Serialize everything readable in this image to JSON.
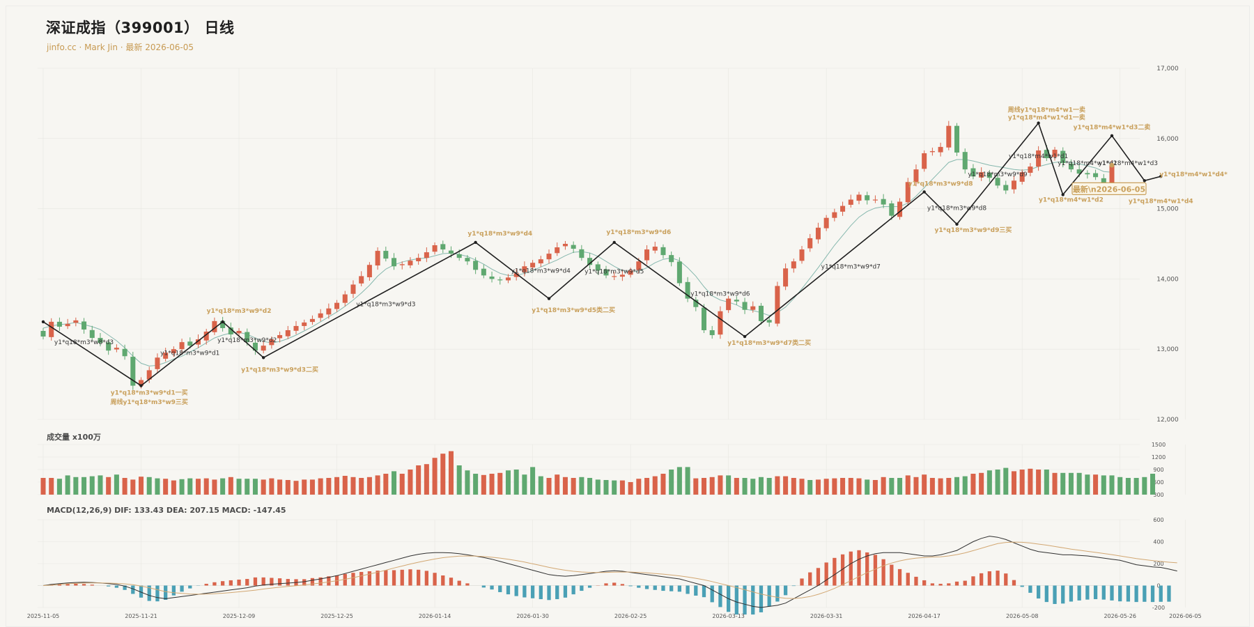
{
  "title": "深证成指（399001） 日线",
  "subtitle": "jinfo.cc · Mark Jin · 最新 2026-06-05",
  "volume_label": "成交量 x100万",
  "macd_label": "MACD(12,26,9) DIF: 133.43 DEA: 207.15 MACD: -147.45",
  "colors": {
    "up": "#d9634a",
    "down": "#5fa870",
    "ma": "#86b8ae",
    "stroke": "#1f1f1f",
    "annot": "#c9a05c",
    "dif": "#2f2f2f",
    "dea": "#d2a772",
    "macd_neg": "#4aa0b5",
    "grid": "#e7e7e2"
  },
  "chart_data": [
    {
      "type": "candlestick",
      "name": "price",
      "ylim": [
        12000,
        17000
      ],
      "y_ticks": [
        "17,000",
        "16,000",
        "15,000",
        "14,000",
        "13,000",
        "12,000"
      ],
      "closes": [
        13180,
        13390,
        13320,
        13360,
        13410,
        13280,
        13160,
        13090,
        12980,
        13020,
        12900,
        12480,
        12560,
        12700,
        12880,
        12950,
        13000,
        13100,
        13050,
        13140,
        13250,
        13400,
        13300,
        13210,
        13260,
        13100,
        12980,
        13050,
        13140,
        13200,
        13270,
        13330,
        13380,
        13430,
        13510,
        13580,
        13660,
        13780,
        13920,
        14040,
        14200,
        14400,
        14290,
        14180,
        14210,
        14260,
        14300,
        14380,
        14480,
        14420,
        14360,
        14300,
        14250,
        14130,
        14050,
        14000,
        13980,
        14020,
        14080,
        14180,
        14230,
        14280,
        14360,
        14450,
        14500,
        14430,
        14300,
        14200,
        14120,
        14050,
        14040,
        14060,
        14120,
        14250,
        14420,
        14460,
        14340,
        14240,
        13940,
        13720,
        13600,
        13270,
        13200,
        13540,
        13720,
        13680,
        13560,
        13610,
        13400,
        13380,
        13900,
        14150,
        14250,
        14420,
        14580,
        14730,
        14870,
        14950,
        15040,
        15130,
        15200,
        15120,
        15130,
        15060,
        14900,
        15100,
        15380,
        15560,
        15790,
        15820,
        15880,
        16180,
        15800,
        15560,
        15460,
        15520,
        15440,
        15330,
        15260,
        15400,
        15520,
        15600,
        15830,
        15720,
        15840,
        15650,
        15560,
        15500,
        15490,
        15450,
        15300,
        15620
      ],
      "ma": [
        13300,
        13330,
        13350,
        13360,
        13380,
        13350,
        13320,
        13280,
        13200,
        13120,
        13020,
        12900,
        12800,
        12760,
        12770,
        12810,
        12860,
        12900,
        12960,
        13020,
        13090,
        13160,
        13200,
        13230,
        13240,
        13210,
        13160,
        13110,
        13090,
        13110,
        13150,
        13200,
        13260,
        13320,
        13390,
        13460,
        13530,
        13610,
        13700,
        13800,
        13910,
        14040,
        14140,
        14200,
        14240,
        14270,
        14290,
        14300,
        14330,
        14360,
        14370,
        14350,
        14320,
        14270,
        14210,
        14140,
        14080,
        14050,
        14050,
        14080,
        14120,
        14170,
        14220,
        14270,
        14330,
        14380,
        14390,
        14370,
        14320,
        14250,
        14180,
        14120,
        14100,
        14110,
        14160,
        14230,
        14280,
        14300,
        14260,
        14160,
        14040,
        13890,
        13760,
        13700,
        13670,
        13630,
        13570,
        13550,
        13520,
        13480,
        13520,
        13600,
        13720,
        13860,
        14010,
        14160,
        14320,
        14480,
        14620,
        14760,
        14880,
        14960,
        15010,
        15030,
        15030,
        15030,
        15080,
        15180,
        15300,
        15420,
        15540,
        15660,
        15700,
        15700,
        15680,
        15650,
        15620,
        15600,
        15580,
        15560,
        15550,
        15560,
        15600,
        15630,
        15660,
        15670,
        15660,
        15640,
        15610,
        15580,
        15530,
        15520
      ],
      "annotations": [
        {
          "text": "y1*q18*m3*w8*d3",
          "x": 5,
          "y": 13070,
          "color": "dark"
        },
        {
          "text": "y1*q18*m3*w9*d1一买",
          "x": 13,
          "y": 12350,
          "color": "gold"
        },
        {
          "text": "周线y1*q18*m3*w9三买",
          "x": 13,
          "y": 12220,
          "color": "gold"
        },
        {
          "text": "y1*q18*m3*w9*d1",
          "x": 18,
          "y": 12920,
          "color": "dark"
        },
        {
          "text": "y1*q18*m3*w9*d2",
          "x": 24,
          "y": 13520,
          "color": "gold"
        },
        {
          "text": "y1*q18*m3*w9*d2",
          "x": 25,
          "y": 13100,
          "color": "dark"
        },
        {
          "text": "y1*q18*m3*w9*d3二买",
          "x": 29,
          "y": 12680,
          "color": "gold"
        },
        {
          "text": "y1*q18*m3*w9*d3",
          "x": 42,
          "y": 13610,
          "color": "dark"
        },
        {
          "text": "y1*q18*m3*w9*d4",
          "x": 56,
          "y": 14620,
          "color": "gold"
        },
        {
          "text": "y1*q18*m3*w9*d4",
          "x": 61,
          "y": 14090,
          "color": "dark"
        },
        {
          "text": "y1*q18*m3*w9*d5类二买",
          "x": 65,
          "y": 13530,
          "color": "gold"
        },
        {
          "text": "y1*q18*m3*w9*d5",
          "x": 70,
          "y": 14080,
          "color": "dark"
        },
        {
          "text": "y1*q18*m3*w9*d6",
          "x": 73,
          "y": 14640,
          "color": "gold"
        },
        {
          "text": "y1*q18*m3*w9*d6",
          "x": 83,
          "y": 13760,
          "color": "dark"
        },
        {
          "text": "y1*q18*m3*w9*d7类二买",
          "x": 89,
          "y": 13060,
          "color": "gold"
        },
        {
          "text": "y1*q18*m3*w9*d7",
          "x": 99,
          "y": 14150,
          "color": "dark"
        },
        {
          "text": "y1*q18*m3*w9*d8",
          "x": 110,
          "y": 15330,
          "color": "gold"
        },
        {
          "text": "y1*q18*m3*w9*d8",
          "x": 112,
          "y": 14980,
          "color": "dark"
        },
        {
          "text": "y1*q18*m3*w9*d9三买",
          "x": 114,
          "y": 14670,
          "color": "gold"
        },
        {
          "text": "y1*q18*m3*w9*d9",
          "x": 117,
          "y": 15460,
          "color": "dark"
        },
        {
          "text": "y1*q18*m4*w1*d1",
          "x": 122,
          "y": 15720,
          "color": "dark"
        },
        {
          "text": "周线y1*q18*m4*w1一卖",
          "x": 123,
          "y": 16380,
          "color": "gold"
        },
        {
          "text": "y1*q18*m4*w1*d1一卖",
          "x": 123,
          "y": 16270,
          "color": "gold"
        },
        {
          "text": "y1*q18*m4*w1*d2",
          "x": 126,
          "y": 15100,
          "color": "gold"
        },
        {
          "text": "y1*q18*m4*w1*d2",
          "x": 128,
          "y": 15620,
          "color": "dark"
        },
        {
          "text": "y1*q18*m4*w1*d3二卖",
          "x": 131,
          "y": 16130,
          "color": "gold"
        },
        {
          "text": "y1*q18*m4*w1*d3",
          "x": 133,
          "y": 15620,
          "color": "dark"
        },
        {
          "text": "y1*q18*m4*w1*d4",
          "x": 137,
          "y": 15080,
          "color": "gold"
        },
        {
          "text": "y1*q18*m4*w1*d4*",
          "x": 141,
          "y": 15460,
          "color": "gold"
        }
      ],
      "latest_label": "最新\\n2026-06-05",
      "zigzag": [
        [
          0,
          13390
        ],
        [
          12,
          12480
        ],
        [
          22,
          13390
        ],
        [
          27,
          12880
        ],
        [
          53,
          14520
        ],
        [
          62,
          13720
        ],
        [
          70,
          14520
        ],
        [
          86,
          13180
        ],
        [
          108,
          15240
        ],
        [
          112,
          14780
        ],
        [
          122,
          16220
        ],
        [
          125,
          15200
        ],
        [
          131,
          16040
        ],
        [
          135,
          15400
        ],
        [
          137,
          15460
        ]
      ]
    },
    {
      "type": "bar",
      "name": "volume",
      "ylim": [
        300,
        1500
      ],
      "y_ticks": [
        "1500",
        "1200",
        "900",
        "600",
        "300"
      ],
      "values": [
        700,
        700,
        680,
        760,
        720,
        720,
        740,
        760,
        720,
        780,
        700,
        660,
        730,
        720,
        690,
        680,
        640,
        670,
        690,
        680,
        690,
        660,
        690,
        720,
        680,
        680,
        680,
        660,
        690,
        660,
        650,
        630,
        660,
        660,
        690,
        700,
        720,
        750,
        720,
        700,
        720,
        760,
        800,
        860,
        800,
        900,
        1000,
        1030,
        1180,
        1280,
        1340,
        1000,
        880,
        800,
        770,
        800,
        820,
        880,
        900,
        780,
        960,
        740,
        700,
        780,
        720,
        700,
        720,
        700,
        660,
        650,
        640,
        640,
        600,
        680,
        700,
        740,
        800,
        900,
        960,
        960,
        690,
        700,
        720,
        760,
        760,
        700,
        700,
        680,
        720,
        700,
        740,
        740,
        700,
        680,
        650,
        660,
        680,
        690,
        700,
        700,
        690,
        660,
        650,
        720,
        700,
        700,
        760,
        720,
        780,
        700,
        690,
        700,
        720,
        740,
        800,
        820,
        880,
        900,
        940,
        860,
        900,
        920,
        900,
        900,
        820,
        820,
        820,
        820,
        780,
        780,
        760,
        760,
        720,
        700,
        700,
        720,
        800
      ],
      "up": [
        1,
        1,
        0,
        0,
        0,
        0,
        0,
        0,
        1,
        0,
        1,
        1,
        1,
        0,
        0,
        1,
        1,
        0,
        0,
        1,
        1,
        1,
        0,
        1,
        0,
        0,
        0,
        1,
        1,
        1,
        1,
        1,
        1,
        1,
        1,
        1,
        1,
        1,
        1,
        1,
        1,
        1,
        1,
        0,
        1,
        1,
        1,
        1,
        1,
        1,
        1,
        0,
        0,
        0,
        1,
        1,
        1,
        0,
        0,
        0,
        0,
        0,
        1,
        1,
        1,
        1,
        0,
        0,
        0,
        0,
        0,
        1,
        1,
        1,
        1,
        1,
        1,
        0,
        0,
        0,
        1,
        1,
        1,
        1,
        0,
        1,
        0,
        0,
        0,
        0,
        1,
        1,
        1,
        1,
        0,
        1,
        1,
        1,
        1,
        1,
        1,
        0,
        1,
        1,
        0,
        0,
        1,
        1,
        1,
        1,
        1,
        1,
        0,
        0,
        1,
        1,
        0,
        0,
        0,
        1,
        1,
        1,
        1,
        0,
        1,
        0,
        0,
        0,
        0,
        1,
        0,
        0
      ]
    },
    {
      "type": "macd",
      "name": "macd",
      "ylim": [
        -200,
        600
      ],
      "y_ticks": [
        "600",
        "400",
        "200",
        "0",
        "-200"
      ],
      "dif": [
        0,
        10,
        18,
        24,
        28,
        30,
        28,
        24,
        18,
        10,
        -5,
        -30,
        -60,
        -90,
        -110,
        -120,
        -110,
        -100,
        -90,
        -80,
        -70,
        -60,
        -50,
        -40,
        -30,
        -20,
        -5,
        5,
        12,
        18,
        22,
        28,
        35,
        48,
        60,
        75,
        90,
        110,
        130,
        150,
        170,
        190,
        210,
        230,
        250,
        270,
        285,
        295,
        300,
        300,
        298,
        290,
        280,
        268,
        255,
        240,
        220,
        200,
        180,
        160,
        140,
        120,
        100,
        90,
        85,
        90,
        100,
        110,
        120,
        130,
        135,
        130,
        120,
        110,
        100,
        90,
        80,
        70,
        60,
        40,
        20,
        0,
        -40,
        -80,
        -120,
        -150,
        -170,
        -190,
        -200,
        -190,
        -180,
        -160,
        -120,
        -80,
        -40,
        0,
        50,
        100,
        150,
        200,
        240,
        270,
        290,
        300,
        300,
        300,
        290,
        280,
        270,
        270,
        280,
        300,
        320,
        360,
        400,
        430,
        450,
        440,
        420,
        390,
        360,
        330,
        310,
        300,
        290,
        280,
        280,
        275,
        270,
        260,
        250,
        240,
        230,
        210,
        190,
        180,
        170,
        165,
        150,
        133
      ],
      "dea": [
        0,
        4,
        10,
        16,
        20,
        23,
        24,
        24,
        22,
        20,
        15,
        8,
        -5,
        -20,
        -38,
        -55,
        -65,
        -72,
        -77,
        -79,
        -78,
        -75,
        -70,
        -64,
        -57,
        -50,
        -42,
        -32,
        -23,
        -15,
        -8,
        -1,
        6,
        14,
        23,
        33,
        44,
        57,
        72,
        88,
        105,
        122,
        140,
        160,
        178,
        196,
        213,
        228,
        242,
        254,
        262,
        268,
        270,
        268,
        264,
        258,
        250,
        240,
        228,
        214,
        198,
        182,
        166,
        152,
        140,
        130,
        124,
        120,
        119,
        120,
        122,
        123,
        123,
        120,
        116,
        110,
        104,
        96,
        88,
        78,
        66,
        53,
        36,
        18,
        0,
        -18,
        -38,
        -58,
        -78,
        -94,
        -107,
        -116,
        -118,
        -112,
        -100,
        -80,
        -55,
        -26,
        8,
        45,
        82,
        118,
        150,
        180,
        205,
        225,
        240,
        250,
        256,
        260,
        262,
        270,
        282,
        298,
        318,
        340,
        362,
        382,
        393,
        396,
        394,
        388,
        378,
        368,
        356,
        344,
        332,
        322,
        312,
        302,
        292,
        282,
        270,
        258,
        246,
        236,
        228,
        220,
        213,
        207
      ],
      "hist": [
        0,
        12,
        16,
        16,
        16,
        14,
        8,
        0,
        -8,
        -20,
        -40,
        -76,
        -110,
        -140,
        -144,
        -130,
        -90,
        -56,
        -26,
        -2,
        16,
        30,
        40,
        48,
        54,
        60,
        74,
        74,
        70,
        66,
        60,
        58,
        58,
        68,
        74,
        84,
        92,
        106,
        116,
        124,
        130,
        136,
        140,
        140,
        144,
        148,
        144,
        134,
        116,
        92,
        72,
        44,
        20,
        0,
        -18,
        -36,
        -60,
        -80,
        -96,
        -108,
        -116,
        -124,
        -132,
        -124,
        -110,
        -80,
        -48,
        -20,
        2,
        20,
        26,
        14,
        -6,
        -20,
        -32,
        -40,
        -48,
        -52,
        -56,
        -76,
        -92,
        -106,
        -152,
        -196,
        -240,
        -264,
        -264,
        -264,
        -244,
        -192,
        -146,
        -88,
        -4,
        64,
        120,
        160,
        210,
        252,
        284,
        310,
        322,
        302,
        280,
        240,
        190,
        150,
        116,
        80,
        48,
        20,
        16,
        20,
        36,
        44,
        84,
        112,
        130,
        136,
        110,
        50,
        -12,
        -66,
        -118,
        -150,
        -168,
        -164,
        -146,
        -136,
        -128,
        -124,
        -128,
        -136,
        -144,
        -146,
        -150,
        -148,
        -150,
        -148,
        -147
      ]
    }
  ],
  "x_labels": [
    "2025-11-05",
    "2025-11-21",
    "2025-12-09",
    "2025-12-25",
    "2026-01-14",
    "2026-01-30",
    "2026-02-25",
    "2026-03-13",
    "2026-03-31",
    "2026-04-17",
    "2026-05-08",
    "2026-05-26",
    "2026-06-05"
  ],
  "x_label_positions": [
    0,
    12,
    24,
    36,
    48,
    60,
    72,
    84,
    96,
    108,
    120,
    132,
    140
  ]
}
